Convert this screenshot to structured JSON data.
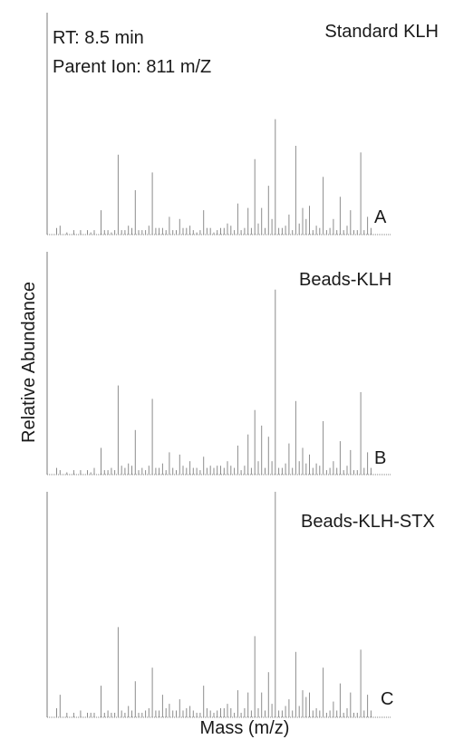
{
  "figure": {
    "ylabel": "Relative Abundance",
    "xlabel": "Mass (m/z)"
  },
  "chart_data": [
    {
      "type": "bar",
      "title": "Standard KLH",
      "panel_letter": "A",
      "annotations": [
        "RT: 8.5 min",
        "Parent Ion: 811 m/Z"
      ],
      "xlim": [
        0,
        100
      ],
      "ylim": [
        0,
        100
      ],
      "x": [
        2,
        3,
        5,
        7,
        9,
        11,
        12,
        13,
        15,
        16,
        17,
        18,
        19,
        20,
        21,
        22,
        23,
        24,
        25,
        26,
        27,
        28,
        29,
        30,
        31,
        32,
        33,
        34,
        35,
        36,
        37,
        38,
        39,
        40,
        41,
        42,
        43,
        44,
        45,
        46,
        47,
        48,
        49,
        50,
        51,
        52,
        53,
        54,
        55,
        56,
        57,
        58,
        59,
        60,
        61,
        62,
        63,
        64,
        65,
        66,
        67,
        68,
        69,
        70,
        71,
        72,
        73,
        74,
        75,
        76,
        77,
        78,
        79,
        80,
        81,
        82,
        83,
        84,
        85,
        86,
        87,
        88,
        89,
        90,
        91,
        92,
        93,
        94
      ],
      "values": [
        3,
        4,
        1,
        2,
        2,
        2,
        1,
        2,
        11,
        2,
        2,
        1,
        2,
        36,
        2,
        2,
        4,
        3,
        20,
        2,
        2,
        2,
        4,
        28,
        3,
        3,
        3,
        2,
        8,
        2,
        2,
        7,
        3,
        3,
        4,
        2,
        1,
        2,
        11,
        3,
        3,
        1,
        2,
        3,
        3,
        5,
        4,
        2,
        14,
        2,
        3,
        12,
        3,
        34,
        5,
        12,
        3,
        22,
        7,
        52,
        3,
        3,
        4,
        9,
        2,
        40,
        5,
        12,
        7,
        13,
        2,
        4,
        3,
        26,
        2,
        3,
        7,
        2,
        17,
        2,
        4,
        11,
        2,
        2,
        37,
        2,
        8,
        3
      ]
    },
    {
      "type": "bar",
      "title": "Beads-KLH",
      "panel_letter": "B",
      "xlim": [
        0,
        100
      ],
      "ylim": [
        0,
        100
      ],
      "x": [
        2,
        3,
        5,
        7,
        9,
        11,
        12,
        13,
        15,
        16,
        17,
        18,
        19,
        20,
        21,
        22,
        23,
        24,
        25,
        26,
        27,
        28,
        29,
        30,
        31,
        32,
        33,
        34,
        35,
        36,
        37,
        38,
        39,
        40,
        41,
        42,
        43,
        44,
        45,
        46,
        47,
        48,
        49,
        50,
        51,
        52,
        53,
        54,
        55,
        56,
        57,
        58,
        59,
        60,
        61,
        62,
        63,
        64,
        65,
        66,
        67,
        68,
        69,
        70,
        71,
        72,
        73,
        74,
        75,
        76,
        77,
        78,
        79,
        80,
        81,
        82,
        83,
        84,
        85,
        86,
        87,
        88,
        89,
        90,
        91,
        92,
        93,
        94
      ],
      "values": [
        3,
        2,
        1,
        2,
        2,
        2,
        1,
        3,
        12,
        2,
        2,
        3,
        2,
        40,
        4,
        3,
        5,
        4,
        20,
        2,
        3,
        2,
        4,
        34,
        3,
        3,
        5,
        2,
        10,
        3,
        2,
        9,
        4,
        3,
        6,
        3,
        3,
        2,
        8,
        3,
        4,
        3,
        4,
        4,
        3,
        6,
        4,
        3,
        13,
        2,
        4,
        18,
        3,
        29,
        6,
        22,
        3,
        17,
        6,
        83,
        3,
        3,
        5,
        14,
        3,
        33,
        6,
        12,
        5,
        9,
        3,
        5,
        4,
        24,
        2,
        3,
        6,
        3,
        15,
        2,
        4,
        11,
        2,
        2,
        37,
        3,
        10,
        3
      ]
    },
    {
      "type": "bar",
      "title": "Beads-KLH-STX",
      "panel_letter": "C",
      "xlim": [
        0,
        100
      ],
      "ylim": [
        0,
        100
      ],
      "x": [
        2,
        3,
        5,
        7,
        9,
        11,
        12,
        13,
        15,
        16,
        17,
        18,
        19,
        20,
        21,
        22,
        23,
        24,
        25,
        26,
        27,
        28,
        29,
        30,
        31,
        32,
        33,
        34,
        35,
        36,
        37,
        38,
        39,
        40,
        41,
        42,
        43,
        44,
        45,
        46,
        47,
        48,
        49,
        50,
        51,
        52,
        53,
        54,
        55,
        56,
        57,
        58,
        59,
        60,
        61,
        62,
        63,
        64,
        65,
        66,
        67,
        68,
        69,
        70,
        71,
        72,
        73,
        74,
        75,
        76,
        77,
        78,
        79,
        80,
        81,
        82,
        83,
        84,
        85,
        86,
        87,
        88,
        89,
        90,
        91,
        92,
        93,
        94
      ],
      "values": [
        4,
        10,
        2,
        2,
        3,
        2,
        2,
        2,
        14,
        2,
        3,
        2,
        2,
        40,
        3,
        2,
        5,
        3,
        16,
        2,
        2,
        3,
        4,
        22,
        3,
        3,
        10,
        4,
        6,
        3,
        3,
        8,
        3,
        4,
        5,
        3,
        2,
        2,
        14,
        4,
        3,
        2,
        3,
        4,
        4,
        6,
        4,
        2,
        12,
        2,
        4,
        11,
        3,
        36,
        4,
        11,
        3,
        20,
        6,
        100,
        3,
        3,
        5,
        8,
        3,
        29,
        5,
        12,
        9,
        11,
        3,
        4,
        3,
        22,
        2,
        3,
        7,
        3,
        15,
        2,
        4,
        11,
        2,
        2,
        30,
        3,
        10,
        3
      ]
    }
  ]
}
